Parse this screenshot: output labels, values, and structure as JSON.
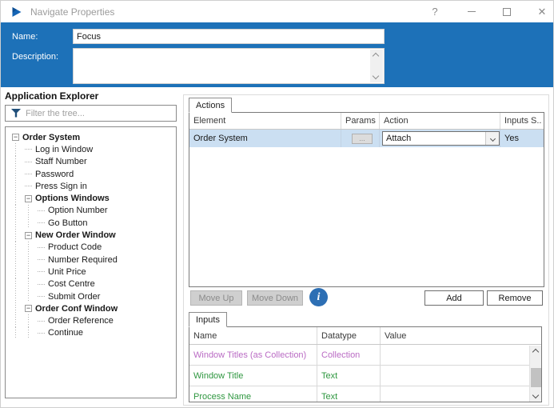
{
  "colors": {
    "accent": "#1d71b8",
    "selection": "#cbdff2",
    "collection_text": "#ba6bc4",
    "text_datatype": "#2f9740",
    "info_badge": "#2d6fb4"
  },
  "window": {
    "title": "Navigate Properties",
    "help_glyph": "?",
    "close_glyph": "✕"
  },
  "header": {
    "name_label": "Name:",
    "name_value": "Focus",
    "description_label": "Description:",
    "description_value": ""
  },
  "explorer": {
    "title": "Application Explorer",
    "filter_placeholder": "Filter the tree...",
    "tree": [
      {
        "label": "Order System",
        "level": 0,
        "bold": true,
        "children": true
      },
      {
        "label": "Log in Window",
        "level": 1,
        "bold": false,
        "children": false
      },
      {
        "label": "Staff Number",
        "level": 1,
        "bold": false,
        "children": false
      },
      {
        "label": "Password",
        "level": 1,
        "bold": false,
        "children": false
      },
      {
        "label": "Press Sign in",
        "level": 1,
        "bold": false,
        "children": false
      },
      {
        "label": "Options Windows",
        "level": 1,
        "bold": true,
        "children": true
      },
      {
        "label": "Option Number",
        "level": 2,
        "bold": false,
        "children": false
      },
      {
        "label": "Go Button",
        "level": 2,
        "bold": false,
        "children": false
      },
      {
        "label": "New Order Window",
        "level": 1,
        "bold": true,
        "children": true
      },
      {
        "label": "Product Code",
        "level": 2,
        "bold": false,
        "children": false
      },
      {
        "label": "Number Required",
        "level": 2,
        "bold": false,
        "children": false
      },
      {
        "label": "Unit Price",
        "level": 2,
        "bold": false,
        "children": false
      },
      {
        "label": "Cost Centre",
        "level": 2,
        "bold": false,
        "children": false
      },
      {
        "label": "Submit Order",
        "level": 2,
        "bold": false,
        "children": false
      },
      {
        "label": "Order Conf Window",
        "level": 1,
        "bold": true,
        "children": true
      },
      {
        "label": "Order Reference",
        "level": 2,
        "bold": false,
        "children": false
      },
      {
        "label": "Continue",
        "level": 2,
        "bold": false,
        "children": false
      }
    ]
  },
  "actions": {
    "tab_label": "Actions",
    "columns": [
      "Element",
      "Params",
      "Action",
      "Inputs S.."
    ],
    "rows": [
      {
        "element": "Order System",
        "params_label": "...",
        "action": "Attach",
        "inputs_set": "Yes"
      }
    ],
    "buttons": {
      "move_up": "Move Up",
      "move_down": "Move Down",
      "add": "Add",
      "remove": "Remove"
    },
    "info_glyph": "i"
  },
  "inputs": {
    "tab_label": "Inputs",
    "columns": [
      "Name",
      "Datatype",
      "Value"
    ],
    "rows": [
      {
        "name": "Window Titles (as Collection)",
        "datatype": "Collection",
        "value": ""
      },
      {
        "name": "Window Title",
        "datatype": "Text",
        "value": ""
      },
      {
        "name": "Process Name",
        "datatype": "Text",
        "value": ""
      }
    ]
  }
}
